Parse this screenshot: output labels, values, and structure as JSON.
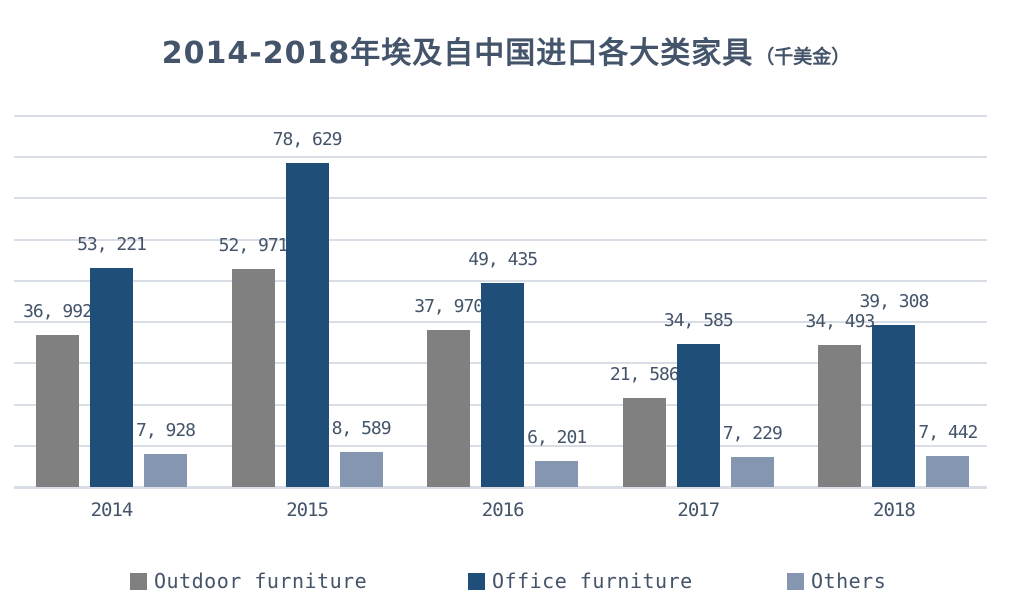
{
  "title": {
    "text": "2014-2018年埃及自中国进口各大类家具",
    "unit": "（千美金）"
  },
  "colors": {
    "outdoor": "#808080",
    "office": "#1F4E79",
    "others": "#8496B0",
    "text": "#44546A",
    "gridline": "#D9DDE6",
    "background": "#FFFFFF"
  },
  "chart_data": {
    "type": "bar",
    "title": "2014-2018年埃及自中国进口各大类家具（千美金）",
    "xlabel": "",
    "ylabel": "",
    "categories": [
      "2014",
      "2015",
      "2016",
      "2017",
      "2018"
    ],
    "series": [
      {
        "name": "Outdoor furniture",
        "color_key": "outdoor",
        "values": [
          36992,
          52971,
          37970,
          21586,
          34493
        ],
        "value_labels": [
          "36, 992",
          "52, 971",
          "37, 970",
          "21, 586",
          "34, 493"
        ]
      },
      {
        "name": "Office furniture",
        "color_key": "office",
        "values": [
          53221,
          78629,
          49435,
          34585,
          39308
        ],
        "value_labels": [
          "53, 221",
          "78, 629",
          "49, 435",
          "34, 585",
          "39, 308"
        ]
      },
      {
        "name": "Others",
        "color_key": "others",
        "values": [
          7928,
          8589,
          6201,
          7229,
          7442
        ],
        "value_labels": [
          "7, 928",
          "8, 589",
          "6, 201",
          "7, 229",
          "7, 442"
        ]
      }
    ],
    "ylim": [
      0,
      90000
    ],
    "grid_step": 10000,
    "grid": true,
    "y_tick_labels_shown": false,
    "data_labels_shown": true,
    "legend_position": "bottom"
  },
  "legend": {
    "items": [
      "Outdoor furniture",
      "Office furniture",
      "Others"
    ]
  }
}
